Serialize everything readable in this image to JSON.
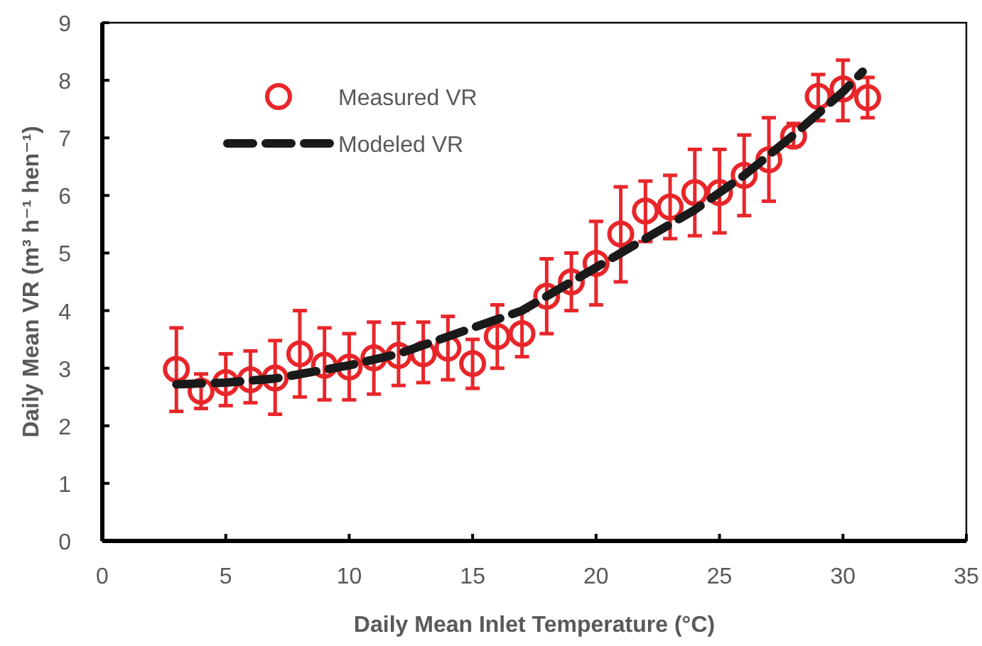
{
  "chart_data": {
    "type": "scatter",
    "xlabel": "Daily Mean Inlet Temperature (°C)",
    "ylabel": "Daily Mean VR (m³ h⁻¹ hen⁻¹)",
    "xlim": [
      0,
      35
    ],
    "xticks": [
      0,
      5,
      10,
      15,
      20,
      25,
      30,
      35
    ],
    "ylim": [
      0,
      9
    ],
    "yticks": [
      0,
      1,
      2,
      3,
      4,
      5,
      6,
      7,
      8,
      9
    ],
    "grid": false,
    "legend": "top left",
    "series": [
      {
        "name": "Measured VR",
        "color": "#e8262a",
        "marker": "circle",
        "x": [
          3,
          4,
          5,
          6,
          7,
          8,
          9,
          10,
          11,
          12,
          13,
          14,
          15,
          16,
          17,
          18,
          19,
          20,
          21,
          22,
          23,
          24,
          25,
          26,
          27,
          28,
          29,
          30,
          31
        ],
        "values": [
          2.98,
          2.6,
          2.75,
          2.8,
          2.83,
          3.25,
          3.05,
          3.02,
          3.18,
          3.22,
          3.25,
          3.35,
          3.08,
          3.55,
          3.6,
          4.25,
          4.5,
          4.82,
          5.33,
          5.73,
          5.8,
          6.05,
          6.05,
          6.35,
          6.62,
          7.03,
          7.72,
          7.85,
          7.7
        ],
        "errors": [
          [
            2.25,
            3.7
          ],
          [
            2.3,
            2.9
          ],
          [
            2.35,
            3.25
          ],
          [
            2.4,
            3.3
          ],
          [
            2.2,
            3.48
          ],
          [
            2.5,
            4.0
          ],
          [
            2.45,
            3.7
          ],
          [
            2.45,
            3.6
          ],
          [
            2.55,
            3.8
          ],
          [
            2.7,
            3.78
          ],
          [
            2.75,
            3.8
          ],
          [
            2.8,
            3.9
          ],
          [
            2.65,
            3.5
          ],
          [
            3.0,
            4.1
          ],
          [
            3.2,
            4.0
          ],
          [
            3.6,
            4.9
          ],
          [
            4.0,
            5.0
          ],
          [
            4.1,
            5.55
          ],
          [
            4.5,
            6.15
          ],
          [
            5.2,
            6.25
          ],
          [
            5.25,
            6.35
          ],
          [
            5.3,
            6.8
          ],
          [
            5.35,
            6.8
          ],
          [
            5.65,
            7.05
          ],
          [
            5.9,
            7.35
          ],
          [
            6.85,
            7.25
          ],
          [
            7.3,
            8.1
          ],
          [
            7.3,
            8.35
          ],
          [
            7.35,
            8.05
          ]
        ]
      },
      {
        "name": "Modeled VR",
        "type": "line",
        "color": "#1a1a1a",
        "marker": "none",
        "line_style": "dashed",
        "x": [
          3,
          5,
          7,
          10,
          12,
          14,
          16,
          17,
          18,
          20,
          22,
          24,
          26,
          28,
          30,
          30.8
        ],
        "values": [
          2.72,
          2.75,
          2.82,
          3.05,
          3.25,
          3.55,
          3.85,
          4.0,
          4.25,
          4.75,
          5.25,
          5.75,
          6.35,
          7.05,
          7.8,
          8.15
        ]
      }
    ]
  }
}
